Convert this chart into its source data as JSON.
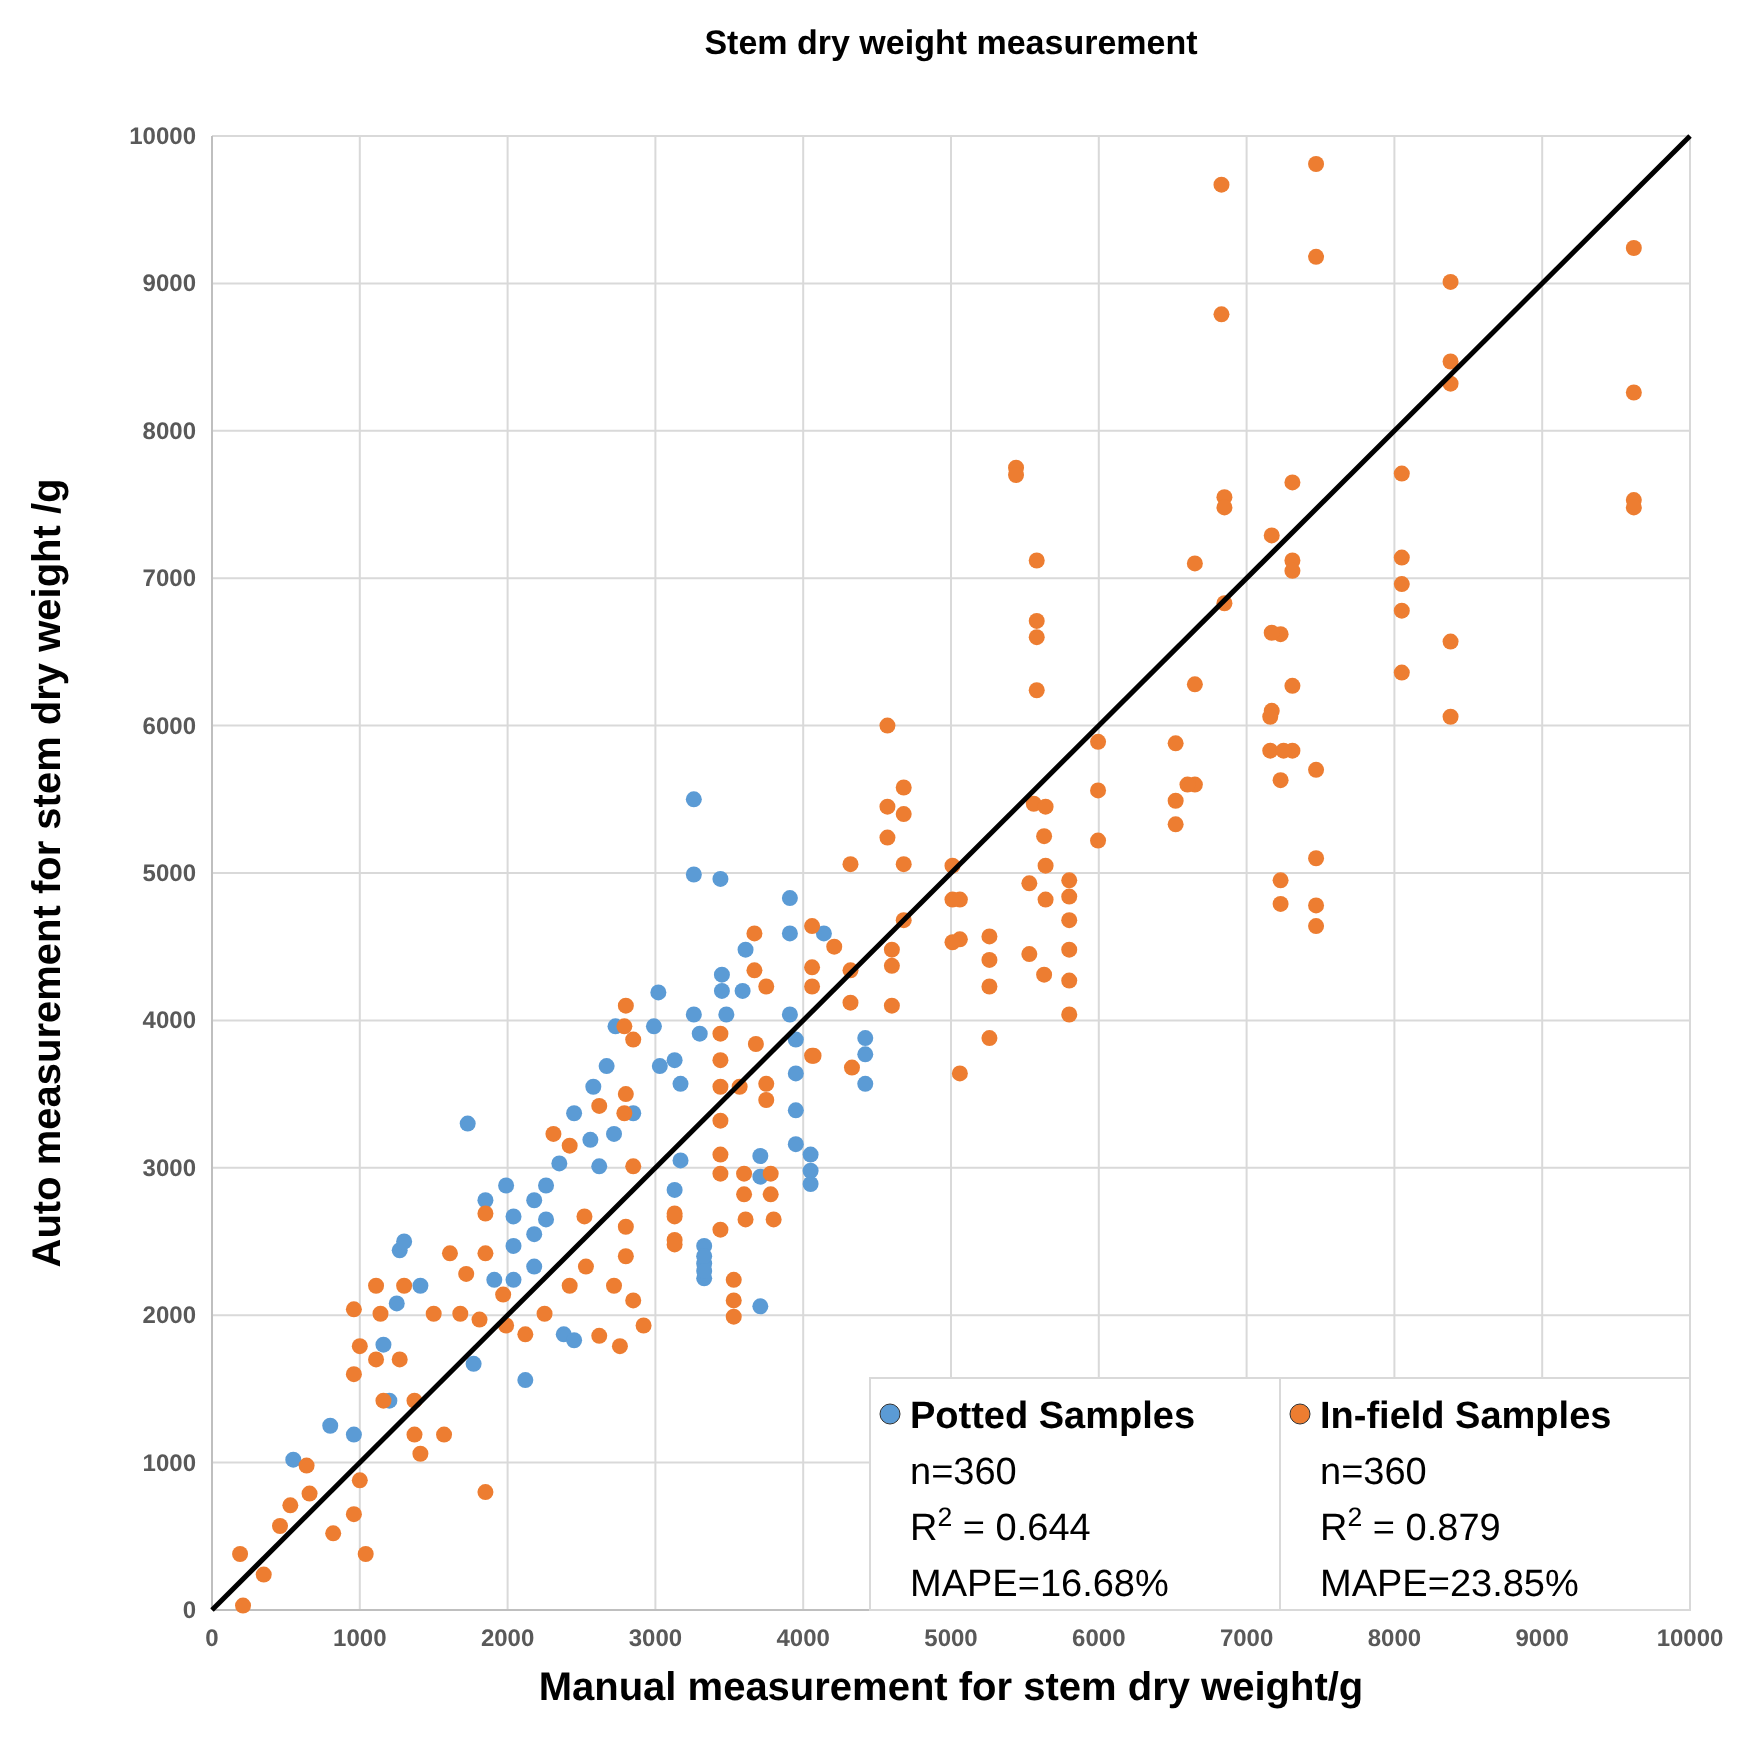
{
  "chart_data": {
    "type": "scatter",
    "title": "Stem dry weight measurement",
    "xlabel": "Manual measurement for stem dry weight/g",
    "ylabel": "Auto measurement for stem dry weight /g",
    "xlim": [
      0,
      10000
    ],
    "ylim": [
      0,
      10000
    ],
    "xticks": [
      0,
      1000,
      2000,
      3000,
      4000,
      5000,
      6000,
      7000,
      8000,
      9000,
      10000
    ],
    "yticks": [
      0,
      1000,
      2000,
      3000,
      4000,
      5000,
      6000,
      7000,
      8000,
      9000,
      10000
    ],
    "grid": true,
    "legend": "bottom right",
    "marker": "circle",
    "annotations": [
      "n=360",
      "R$^{2}$ = 0.644",
      "MAPE=16.68%",
      "n=360",
      "R$^{2}$ = 0.879",
      "MAPE=23.85%"
    ],
    "series": [
      {
        "name": "Potted Samples",
        "color": "#5b9bd5",
        "x": [
          3260,
          3260,
          3440,
          3910,
          3910,
          4140,
          3610,
          3450,
          3450,
          3590,
          3020,
          2730,
          3910,
          3950,
          4420,
          4420,
          4420,
          3950,
          3950,
          3950,
          4050,
          4050,
          4050,
          3710,
          3710,
          3330,
          3330,
          3330,
          3710,
          3130,
          3300,
          3480,
          1730,
          550,
          800,
          960,
          1270,
          1300,
          1410,
          1250,
          1160,
          1200,
          1770,
          2120,
          2040,
          2180,
          1990,
          2350,
          2560,
          2620,
          2720,
          2850,
          2670,
          3030,
          2990,
          3170,
          3260,
          3130,
          3170,
          3330,
          3330,
          2380,
          2450,
          2260,
          2180,
          2040,
          1850,
          2260,
          2450,
          2580,
          2040,
          1910,
          2180
        ],
        "values": [
          5500,
          4990,
          4960,
          4830,
          4590,
          4590,
          4480,
          4310,
          4200,
          4200,
          4190,
          3960,
          4040,
          3870,
          3880,
          3770,
          3570,
          3640,
          3390,
          3160,
          3090,
          2980,
          2890,
          3080,
          2940,
          2470,
          2350,
          2250,
          2060,
          3730,
          3910,
          4040,
          3300,
          1020,
          1250,
          1190,
          2440,
          2500,
          2200,
          2080,
          1800,
          1420,
          1670,
          1560,
          2670,
          2780,
          2880,
          3030,
          3190,
          3010,
          3230,
          3370,
          3690,
          3690,
          3960,
          3570,
          4040,
          2850,
          3050,
          2400,
          2300,
          1870,
          1830,
          2650,
          2550,
          2470,
          2780,
          2880,
          3370,
          3550,
          2240,
          2240,
          2330
        ]
      },
      {
        "name": "In-field Samples",
        "color": "#ed7d31",
        "x": [
          7470,
          7470,
          8380,
          8380,
          8380,
          9620,
          9620,
          9620,
          9620,
          8050,
          8050,
          8050,
          8050,
          8050,
          8380,
          8380,
          7310,
          7310,
          7310,
          7310,
          7310,
          7470,
          7230,
          7470,
          7230,
          7230,
          7470,
          7470,
          7230,
          6830,
          6830,
          6850,
          6850,
          6850,
          7170,
          7170,
          7170,
          7160,
          6650,
          6650,
          6650,
          5995,
          5995,
          5995,
          6520,
          6600,
          6520,
          6520,
          7160,
          7250,
          5560,
          5640,
          5630,
          5640,
          5530,
          5640,
          5800,
          5800,
          5800,
          5800,
          5800,
          5800,
          5530,
          5630,
          5260,
          5260,
          5260,
          5260,
          5060,
          5060,
          5060,
          5440,
          5440,
          5580,
          5580,
          5580,
          5580,
          4570,
          4680,
          4570,
          4680,
          4570,
          4680,
          4320,
          5010,
          5010,
          5010,
          4680,
          4600,
          4600,
          4600,
          4320,
          4320,
          4060,
          4210,
          3670,
          3670,
          3750,
          4060,
          4060,
          4060,
          4330,
          3680,
          3750,
          3750,
          3570,
          3440,
          3440,
          3440,
          3440,
          3440,
          3440,
          3600,
          3600,
          3780,
          3780,
          3800,
          3610,
          3440,
          3530,
          3530,
          3530,
          3130,
          3130,
          2800,
          4070,
          1850,
          210,
          190,
          350,
          460,
          530,
          660,
          640,
          1000,
          960,
          1040,
          820,
          960,
          1000,
          1110,
          1270,
          1160,
          1370,
          1370,
          1410,
          1570,
          1110,
          1140,
          960,
          1300,
          1500,
          1610,
          1720,
          1850,
          1850,
          1680,
          1810,
          1990,
          2120,
          2250,
          1970,
          2520,
          2530,
          2720,
          2850,
          2920,
          2760,
          2620,
          2800,
          2800,
          2420,
          2310,
          2420,
          2620,
          2790,
          2800,
          2850,
          3130,
          3130,
          2790,
          2850
        ],
        "values": [
          9810,
          9180,
          9010,
          8470,
          8320,
          9240,
          8260,
          7530,
          7480,
          7710,
          7140,
          6960,
          6780,
          6360,
          6570,
          6060,
          7650,
          7120,
          7050,
          6270,
          5830,
          5700,
          5630,
          5100,
          4950,
          4790,
          4780,
          4640,
          6620,
          9670,
          8790,
          6830,
          7550,
          7480,
          7290,
          6630,
          6100,
          5830,
          7100,
          6280,
          5600,
          5890,
          5560,
          5220,
          5880,
          5600,
          5490,
          5330,
          6060,
          5830,
          5470,
          5450,
          5250,
          5050,
          4930,
          4820,
          4950,
          4840,
          4680,
          4480,
          4270,
          4040,
          4450,
          4310,
          4570,
          4410,
          4230,
          3880,
          4820,
          4550,
          3640,
          7750,
          7700,
          7120,
          6710,
          6600,
          6240,
          6000,
          5580,
          5450,
          5400,
          5240,
          5060,
          5060,
          5050,
          4820,
          4530,
          4680,
          4480,
          4370,
          4100,
          4120,
          4340,
          4640,
          4500,
          4590,
          4340,
          4230,
          4360,
          4230,
          3760,
          3680,
          3840,
          3570,
          3460,
          3550,
          3910,
          3730,
          3550,
          3320,
          3090,
          2960,
          2960,
          2820,
          2960,
          2820,
          2650,
          2650,
          2580,
          2240,
          2100,
          1990,
          2690,
          2510,
          4100,
          3760,
          800,
          30,
          380,
          240,
          570,
          710,
          790,
          980,
          880,
          650,
          380,
          520,
          1600,
          1790,
          1700,
          1700,
          1420,
          1420,
          1190,
          1060,
          1190,
          2200,
          2010,
          2040,
          2200,
          2010,
          2420,
          2280,
          2420,
          2690,
          2010,
          1970,
          1930,
          1870,
          2010,
          2140,
          2670,
          2330,
          2200,
          2100,
          1930,
          1790,
          1860,
          2400,
          2600,
          2200,
          3230,
          3150,
          3420,
          3370,
          3500,
          3010,
          2670,
          2480,
          3960,
          3870
        ]
      },
      {
        "type": "line",
        "marker": "none",
        "color": "#000000",
        "x": [
          0,
          10000
        ],
        "values": [
          0,
          10000
        ]
      }
    ]
  }
}
